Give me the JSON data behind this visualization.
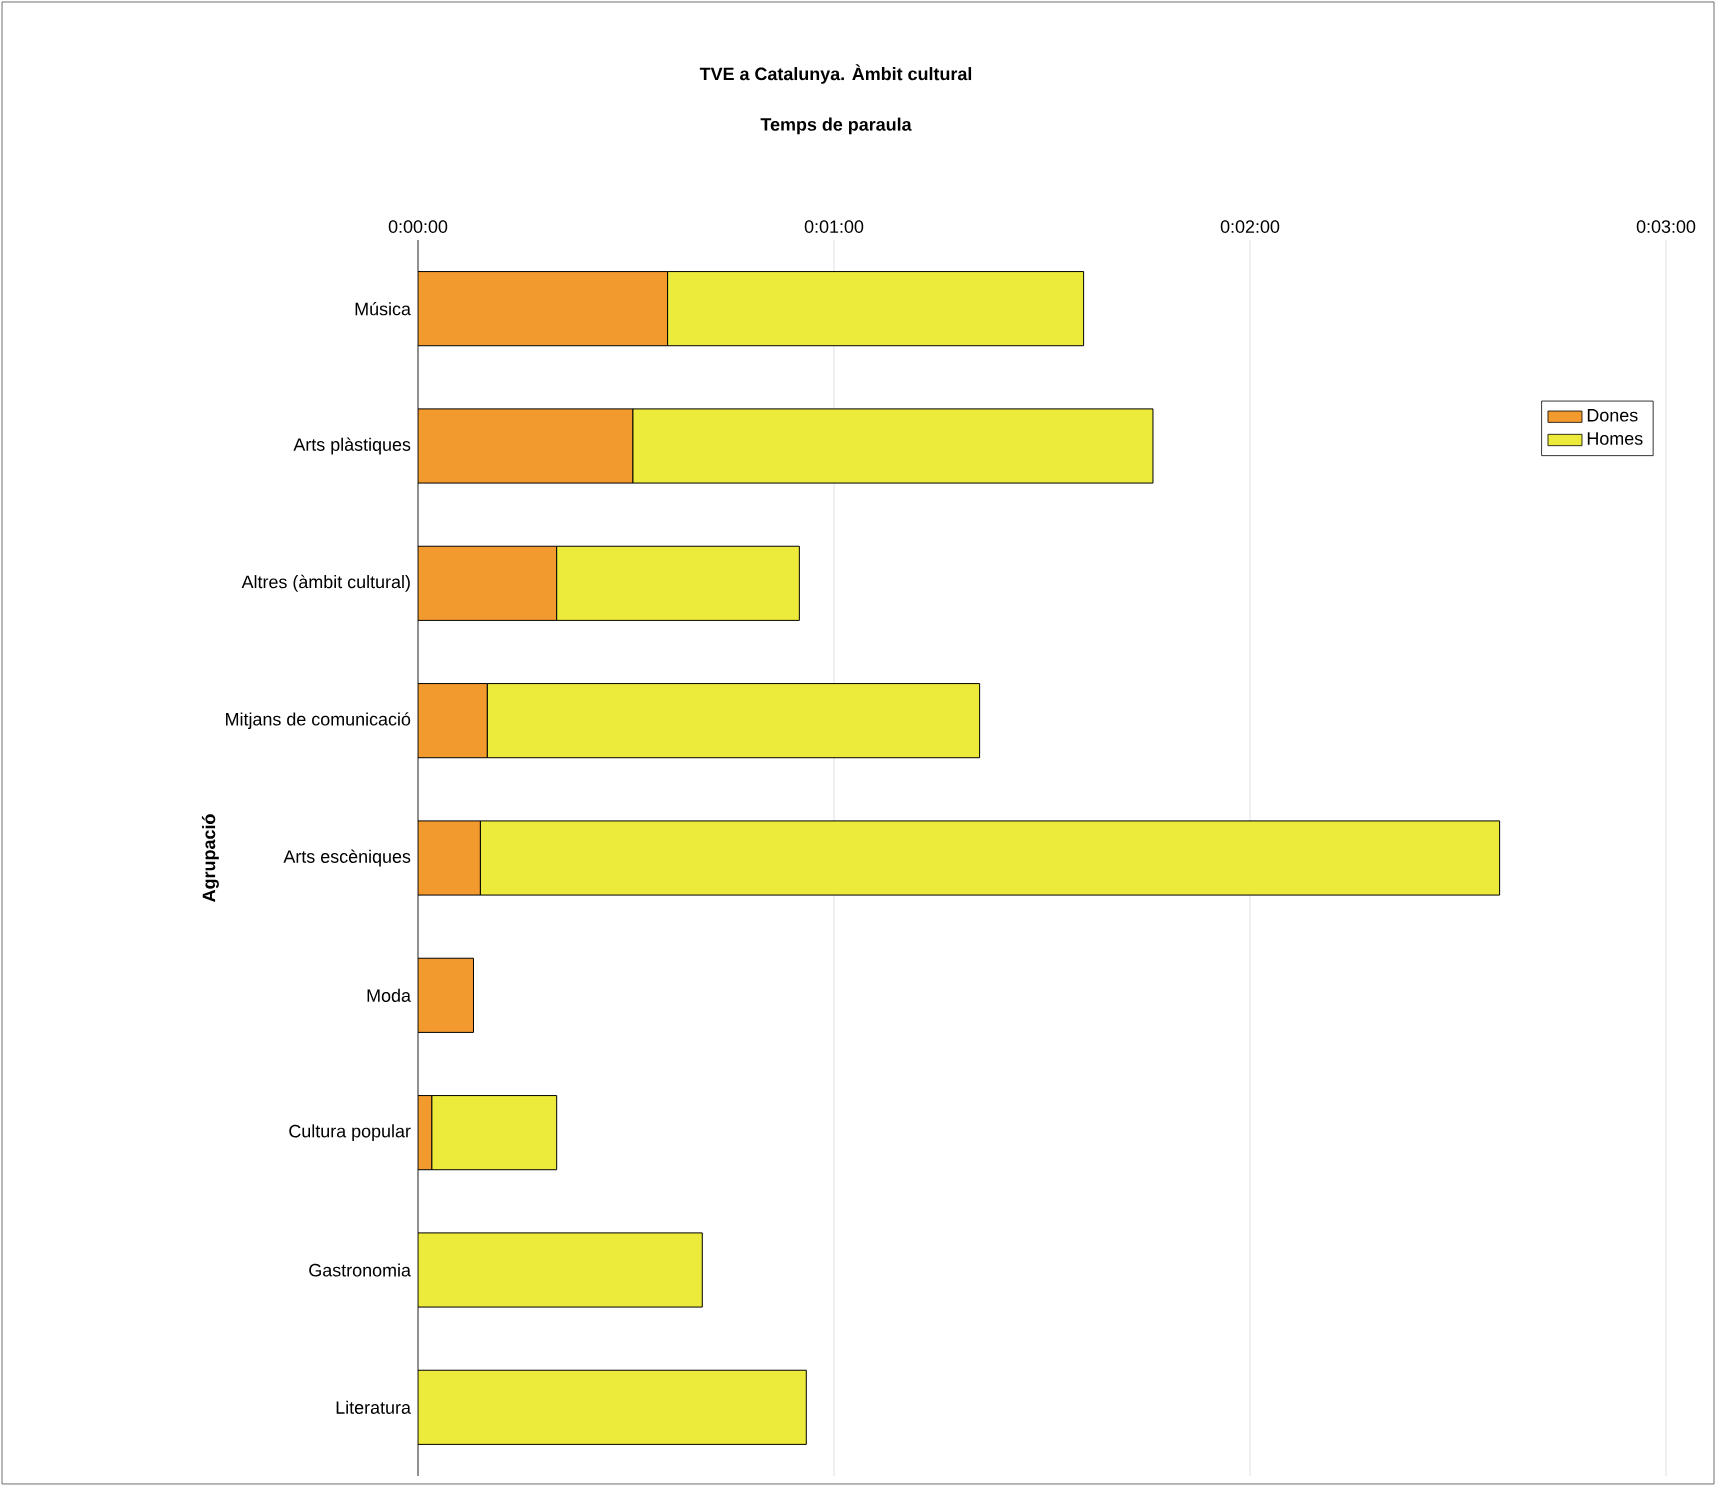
{
  "chart_data": {
    "type": "bar",
    "orientation": "horizontal",
    "stacked": true,
    "title": "TVE a Catalunya. Àmbit cultural",
    "subtitle": "Temps de paraula",
    "ylabel": "Agrupació",
    "categories": [
      "Música",
      "Arts plàstiques",
      "Altres (àmbit cultural)",
      "Mitjans de comunicació",
      "Arts escèniques",
      "Moda",
      "Cultura popular",
      "Gastronomia",
      "Literatura"
    ],
    "series": [
      {
        "name": "Dones",
        "color": "#f39a2e",
        "values": [
          36,
          31,
          20,
          10,
          9,
          8,
          2,
          null,
          null
        ]
      },
      {
        "name": "Homes",
        "color": "#ecea3a",
        "values": [
          60,
          75,
          35,
          71,
          147,
          null,
          18,
          41,
          56
        ]
      }
    ],
    "xlim": [
      0,
      180
    ],
    "xticks": [
      {
        "value": 0,
        "label": "0:00:00"
      },
      {
        "value": 60,
        "label": "0:01:00"
      },
      {
        "value": 120,
        "label": "0:02:00"
      },
      {
        "value": 180,
        "label": "0:03:00"
      }
    ],
    "grid": "x",
    "legend": "top right"
  }
}
